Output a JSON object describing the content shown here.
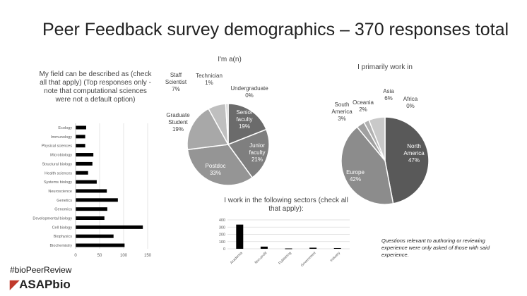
{
  "title": "Peer Feedback survey demographics – 370 responses total",
  "note": "Questions relevant to authoring or reviewing experience were only asked of those with said experience.",
  "hashtag": "#bioPeerReview",
  "logo": "ASAPbio",
  "chart_data": [
    {
      "type": "bar",
      "orientation": "horizontal",
      "title": "My field can be described as (check all that apply) (Top responses only - note that computational sciences were not a default option)",
      "categories": [
        "Ecology",
        "Immunology",
        "Physical sciences",
        "Microbiology",
        "Structural biology",
        "Health sciences",
        "Systems biology",
        "Neuroscience",
        "Genetics",
        "Genomics",
        "Developmental biology",
        "Cell biology",
        "Biophysics",
        "Biochemistry"
      ],
      "values": [
        22,
        20,
        20,
        37,
        35,
        26,
        44,
        65,
        88,
        66,
        60,
        140,
        79,
        102
      ],
      "xlim": [
        0,
        150
      ],
      "xticks": [
        0,
        50,
        100,
        150
      ],
      "grid": true,
      "color": "#000000"
    },
    {
      "type": "pie",
      "title": "I'm a(n)",
      "labels": [
        "Senior faculty",
        "Junior faculty",
        "Postdoc",
        "Graduate Student",
        "Staff Scientist",
        "Technician",
        "Undergraduate"
      ],
      "display_labels": [
        [
          "Senior",
          "faculty",
          "19%"
        ],
        [
          "Junior",
          "faculty",
          "21%"
        ],
        [
          "Postdoc",
          "33%"
        ],
        [
          "Graduate",
          "Student",
          "19%"
        ],
        [
          "Staff",
          "Scientist",
          "7%"
        ],
        [
          "Technician",
          "1%"
        ],
        [
          "Undergraduate",
          "0%"
        ]
      ],
      "values": [
        19,
        21,
        33,
        19,
        7,
        1,
        0
      ],
      "colors": [
        "#6b6b6b",
        "#7f7f7f",
        "#959595",
        "#a8a8a8",
        "#bfbfbf",
        "#d4d4d4",
        "#e6e6e6"
      ]
    },
    {
      "type": "pie",
      "title": "I primarily work in",
      "labels": [
        "North America",
        "Europe",
        "South America",
        "Oceania",
        "Asia",
        "Africa"
      ],
      "display_labels": [
        [
          "North",
          "America",
          "47%"
        ],
        [
          "Europe",
          "42%"
        ],
        [
          "South",
          "America",
          "3%"
        ],
        [
          "Oceania",
          "2%"
        ],
        [
          "Asia",
          "6%"
        ],
        [
          "Africa",
          "0%"
        ]
      ],
      "values": [
        47,
        42,
        3,
        2,
        6,
        0
      ],
      "colors": [
        "#595959",
        "#8c8c8c",
        "#a0a0a0",
        "#b2b2b2",
        "#c9c9c9",
        "#e0e0e0"
      ]
    },
    {
      "type": "bar",
      "title": "I work in the following sectors (check all that apply):",
      "categories": [
        "Academia",
        "Non-profit",
        "Publishing",
        "Government",
        "Industry"
      ],
      "values": [
        335,
        30,
        5,
        15,
        10
      ],
      "ylim": [
        0,
        400
      ],
      "yticks": [
        0,
        100,
        200,
        300,
        400
      ],
      "grid": true,
      "color": "#000000"
    }
  ]
}
